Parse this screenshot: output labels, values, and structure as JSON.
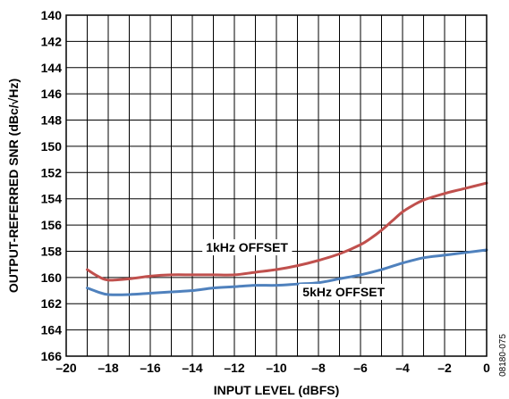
{
  "chart_data": {
    "type": "line",
    "xlabel": "INPUT LEVEL (dBFS)",
    "ylabel": "OUTPUT-REFERRED SNR (dBc/√Hz)",
    "xlim": [
      -20,
      0
    ],
    "ylim": [
      140,
      166
    ],
    "y_reversed": true,
    "grid": true,
    "x_ticks": [
      -20,
      -18,
      -16,
      -14,
      -12,
      -10,
      -8,
      -6,
      -4,
      -2,
      0
    ],
    "x_tick_labels": [
      "–20",
      "–18",
      "–16",
      "–14",
      "–12",
      "–10",
      "–8",
      "–6",
      "–4",
      "–2",
      "0"
    ],
    "y_ticks": [
      140,
      142,
      144,
      146,
      148,
      150,
      152,
      154,
      156,
      158,
      160,
      162,
      164,
      166
    ],
    "y_tick_labels": [
      "140",
      "142",
      "144",
      "146",
      "148",
      "150",
      "152",
      "154",
      "156",
      "158",
      "160",
      "162",
      "164",
      "166"
    ],
    "series": [
      {
        "name": "1kHz OFFSET",
        "color": "#c0504d",
        "x": [
          -19,
          -18.5,
          -18,
          -17,
          -16,
          -15,
          -14,
          -13,
          -12,
          -11,
          -10,
          -9,
          -8,
          -7,
          -6,
          -5.5,
          -5,
          -4.5,
          -4,
          -3.5,
          -3,
          -2,
          -1,
          0
        ],
        "y": [
          159.4,
          159.9,
          160.2,
          160.1,
          159.9,
          159.8,
          159.8,
          159.8,
          159.8,
          159.6,
          159.4,
          159.1,
          158.7,
          158.2,
          157.5,
          157.0,
          156.4,
          155.7,
          155.0,
          154.5,
          154.1,
          153.6,
          153.2,
          152.8
        ]
      },
      {
        "name": "5kHz OFFSET",
        "color": "#4f81bd",
        "x": [
          -19,
          -18.5,
          -18,
          -17,
          -16,
          -15,
          -14,
          -13,
          -12,
          -11,
          -10,
          -9,
          -8,
          -7,
          -6,
          -5,
          -4,
          -3,
          -2,
          -1,
          0
        ],
        "y": [
          160.8,
          161.1,
          161.3,
          161.3,
          161.2,
          161.1,
          161.0,
          160.8,
          160.7,
          160.6,
          160.6,
          160.5,
          160.4,
          160.1,
          159.8,
          159.4,
          158.9,
          158.5,
          158.3,
          158.1,
          157.9
        ]
      }
    ],
    "annotations": [
      {
        "text": "1kHz OFFSET",
        "series": 0
      },
      {
        "text": "5kHz OFFSET",
        "series": 1
      }
    ],
    "figure_id": "08180-075"
  }
}
